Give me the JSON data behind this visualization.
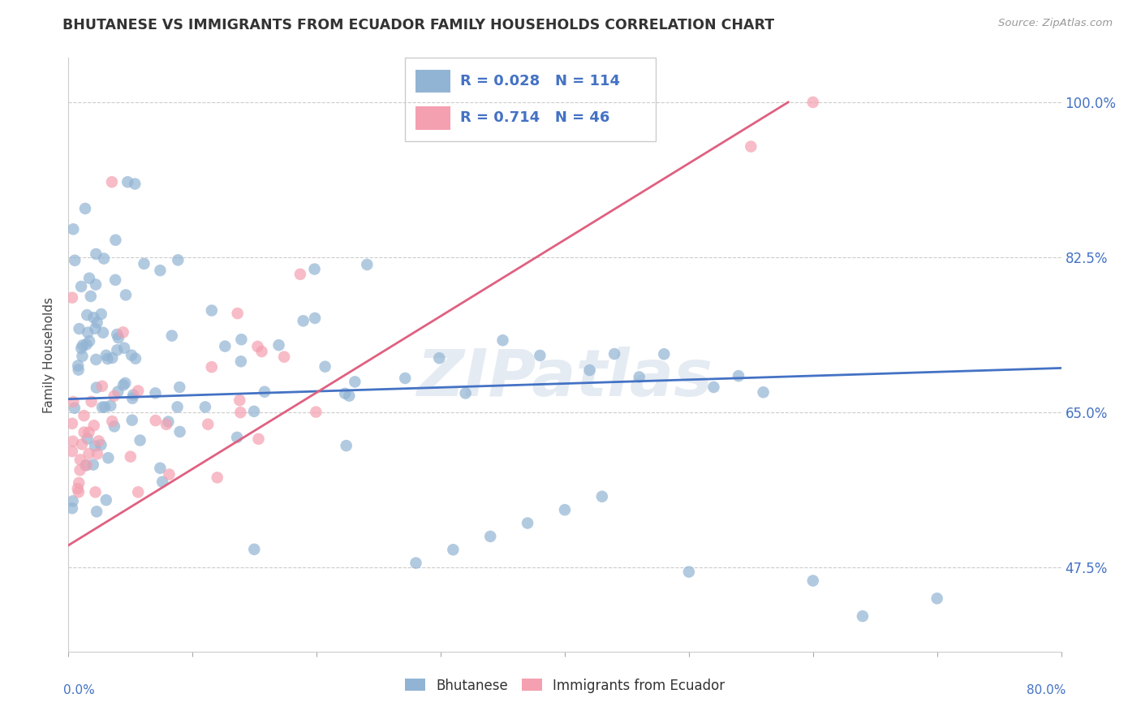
{
  "title": "BHUTANESE VS IMMIGRANTS FROM ECUADOR FAMILY HOUSEHOLDS CORRELATION CHART",
  "source": "Source: ZipAtlas.com",
  "ylabel": "Family Households",
  "ytick_labels": [
    "47.5%",
    "65.0%",
    "82.5%",
    "100.0%"
  ],
  "ytick_vals": [
    47.5,
    65.0,
    82.5,
    100.0
  ],
  "xlim": [
    0.0,
    80.0
  ],
  "ylim": [
    38.0,
    105.0
  ],
  "blue_color": "#92B4D4",
  "blue_line_color": "#4472C4",
  "pink_color": "#F4A0B0",
  "pink_line_color": "#E06080",
  "legend_label_blue": "Bhutanese",
  "legend_label_pink": "Immigrants from Ecuador",
  "R_blue": "0.028",
  "N_blue": "114",
  "R_pink": "0.714",
  "N_pink": "46",
  "watermark": "ZIPatlas",
  "blue_line_y0": 66.5,
  "blue_line_y1": 70.0,
  "pink_line_y0": 50.0,
  "pink_line_y1": 100.0,
  "pink_line_x0": 0.0,
  "pink_line_x1": 58.0
}
